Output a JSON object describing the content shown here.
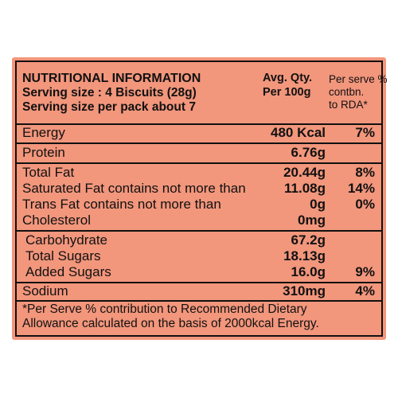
{
  "header": {
    "title": "NUTRITIONAL INFORMATION",
    "serving_size": "Serving size : 4 Biscuits (28g)",
    "servings_per_pack": "Serving size per pack about 7",
    "avg_qty_line1": "Avg. Qty.",
    "avg_qty_line2": "Per 100g",
    "rda_line1": "Per serve %",
    "rda_line2": "contbn.",
    "rda_line3": "to RDA*"
  },
  "rows": [
    {
      "label": "Energy",
      "value": "480 Kcal",
      "rda": "7%"
    },
    {
      "label": "Protein",
      "value": "6.76g",
      "rda": ""
    },
    {
      "label": "Total Fat",
      "value": "20.44g",
      "rda": "8%"
    },
    {
      "label": "Saturated Fat contains not more than",
      "value": "11.08g",
      "rda": "14%"
    },
    {
      "label": "Trans Fat contains not more than",
      "value": "0g",
      "rda": "0%"
    },
    {
      "label": "Cholesterol",
      "value": "0mg",
      "rda": ""
    },
    {
      "label": "Carbohydrate",
      "value": "67.2g",
      "rda": ""
    },
    {
      "label": "Total Sugars",
      "value": "18.13g",
      "rda": ""
    },
    {
      "label": "Added Sugars",
      "value": "16.0g",
      "rda": "9%"
    },
    {
      "label": "Sodium",
      "value": "310mg",
      "rda": "4%"
    }
  ],
  "footnote": {
    "line1": "*Per Serve % contribution to Recommended Dietary",
    "line2": "Allowance calculated on the basis of 2000kcal Energy."
  },
  "colors": {
    "panel": "#f2967c",
    "ink": "#111111"
  }
}
